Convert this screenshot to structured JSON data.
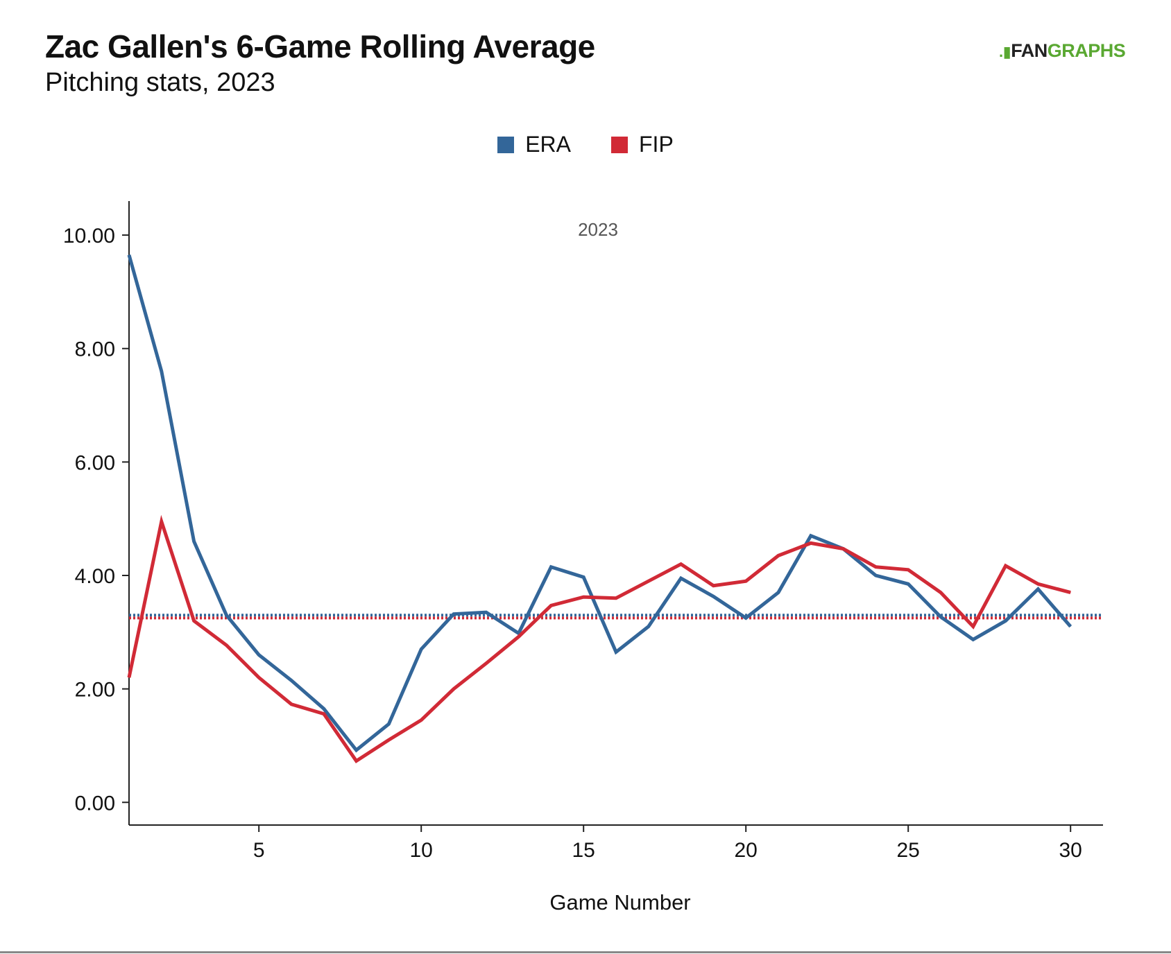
{
  "header": {
    "title": "Zac Gallen's 6-Game Rolling Average",
    "subtitle": "Pitching stats, 2023"
  },
  "logo": {
    "text_part1": "FAN",
    "text_part2": "GRAPHS",
    "color_text": "#222222",
    "color_accent": "#5aa832"
  },
  "chart_data": {
    "type": "line",
    "panel_label": "2023",
    "xlabel": "Game Number",
    "ylabel": "",
    "xlim": [
      1,
      31
    ],
    "ylim": [
      -0.4,
      10.6
    ],
    "xticks": [
      5,
      10,
      15,
      20,
      25,
      30
    ],
    "yticks": [
      0,
      2,
      4,
      6,
      8,
      10
    ],
    "ytick_labels": [
      "0.00",
      "2.00",
      "4.00",
      "6.00",
      "8.00",
      "10.00"
    ],
    "x": [
      1,
      2,
      3,
      4,
      5,
      6,
      7,
      8,
      9,
      10,
      11,
      12,
      13,
      14,
      15,
      16,
      17,
      18,
      19,
      20,
      21,
      22,
      23,
      24,
      25,
      26,
      27,
      28,
      29,
      30
    ],
    "series": [
      {
        "name": "ERA",
        "color": "#336699",
        "values": [
          9.65,
          7.6,
          4.6,
          3.3,
          2.6,
          2.15,
          1.65,
          0.92,
          1.38,
          2.7,
          3.32,
          3.35,
          2.98,
          4.15,
          3.97,
          2.65,
          3.1,
          3.95,
          3.63,
          3.25,
          3.7,
          4.7,
          4.47,
          4.0,
          3.85,
          3.27,
          2.87,
          3.2,
          3.76,
          3.1
        ],
        "reference_line": 3.3
      },
      {
        "name": "FIP",
        "color": "#d12a36",
        "values": [
          2.2,
          4.95,
          3.2,
          2.77,
          2.2,
          1.73,
          1.56,
          0.73,
          1.1,
          1.45,
          2.0,
          2.45,
          2.92,
          3.47,
          3.62,
          3.6,
          3.9,
          4.2,
          3.82,
          3.9,
          4.35,
          4.57,
          4.47,
          4.15,
          4.1,
          3.7,
          3.1,
          4.17,
          3.85,
          3.7
        ],
        "reference_line": 3.25
      }
    ],
    "grid": false,
    "legend_position": "top-center"
  }
}
